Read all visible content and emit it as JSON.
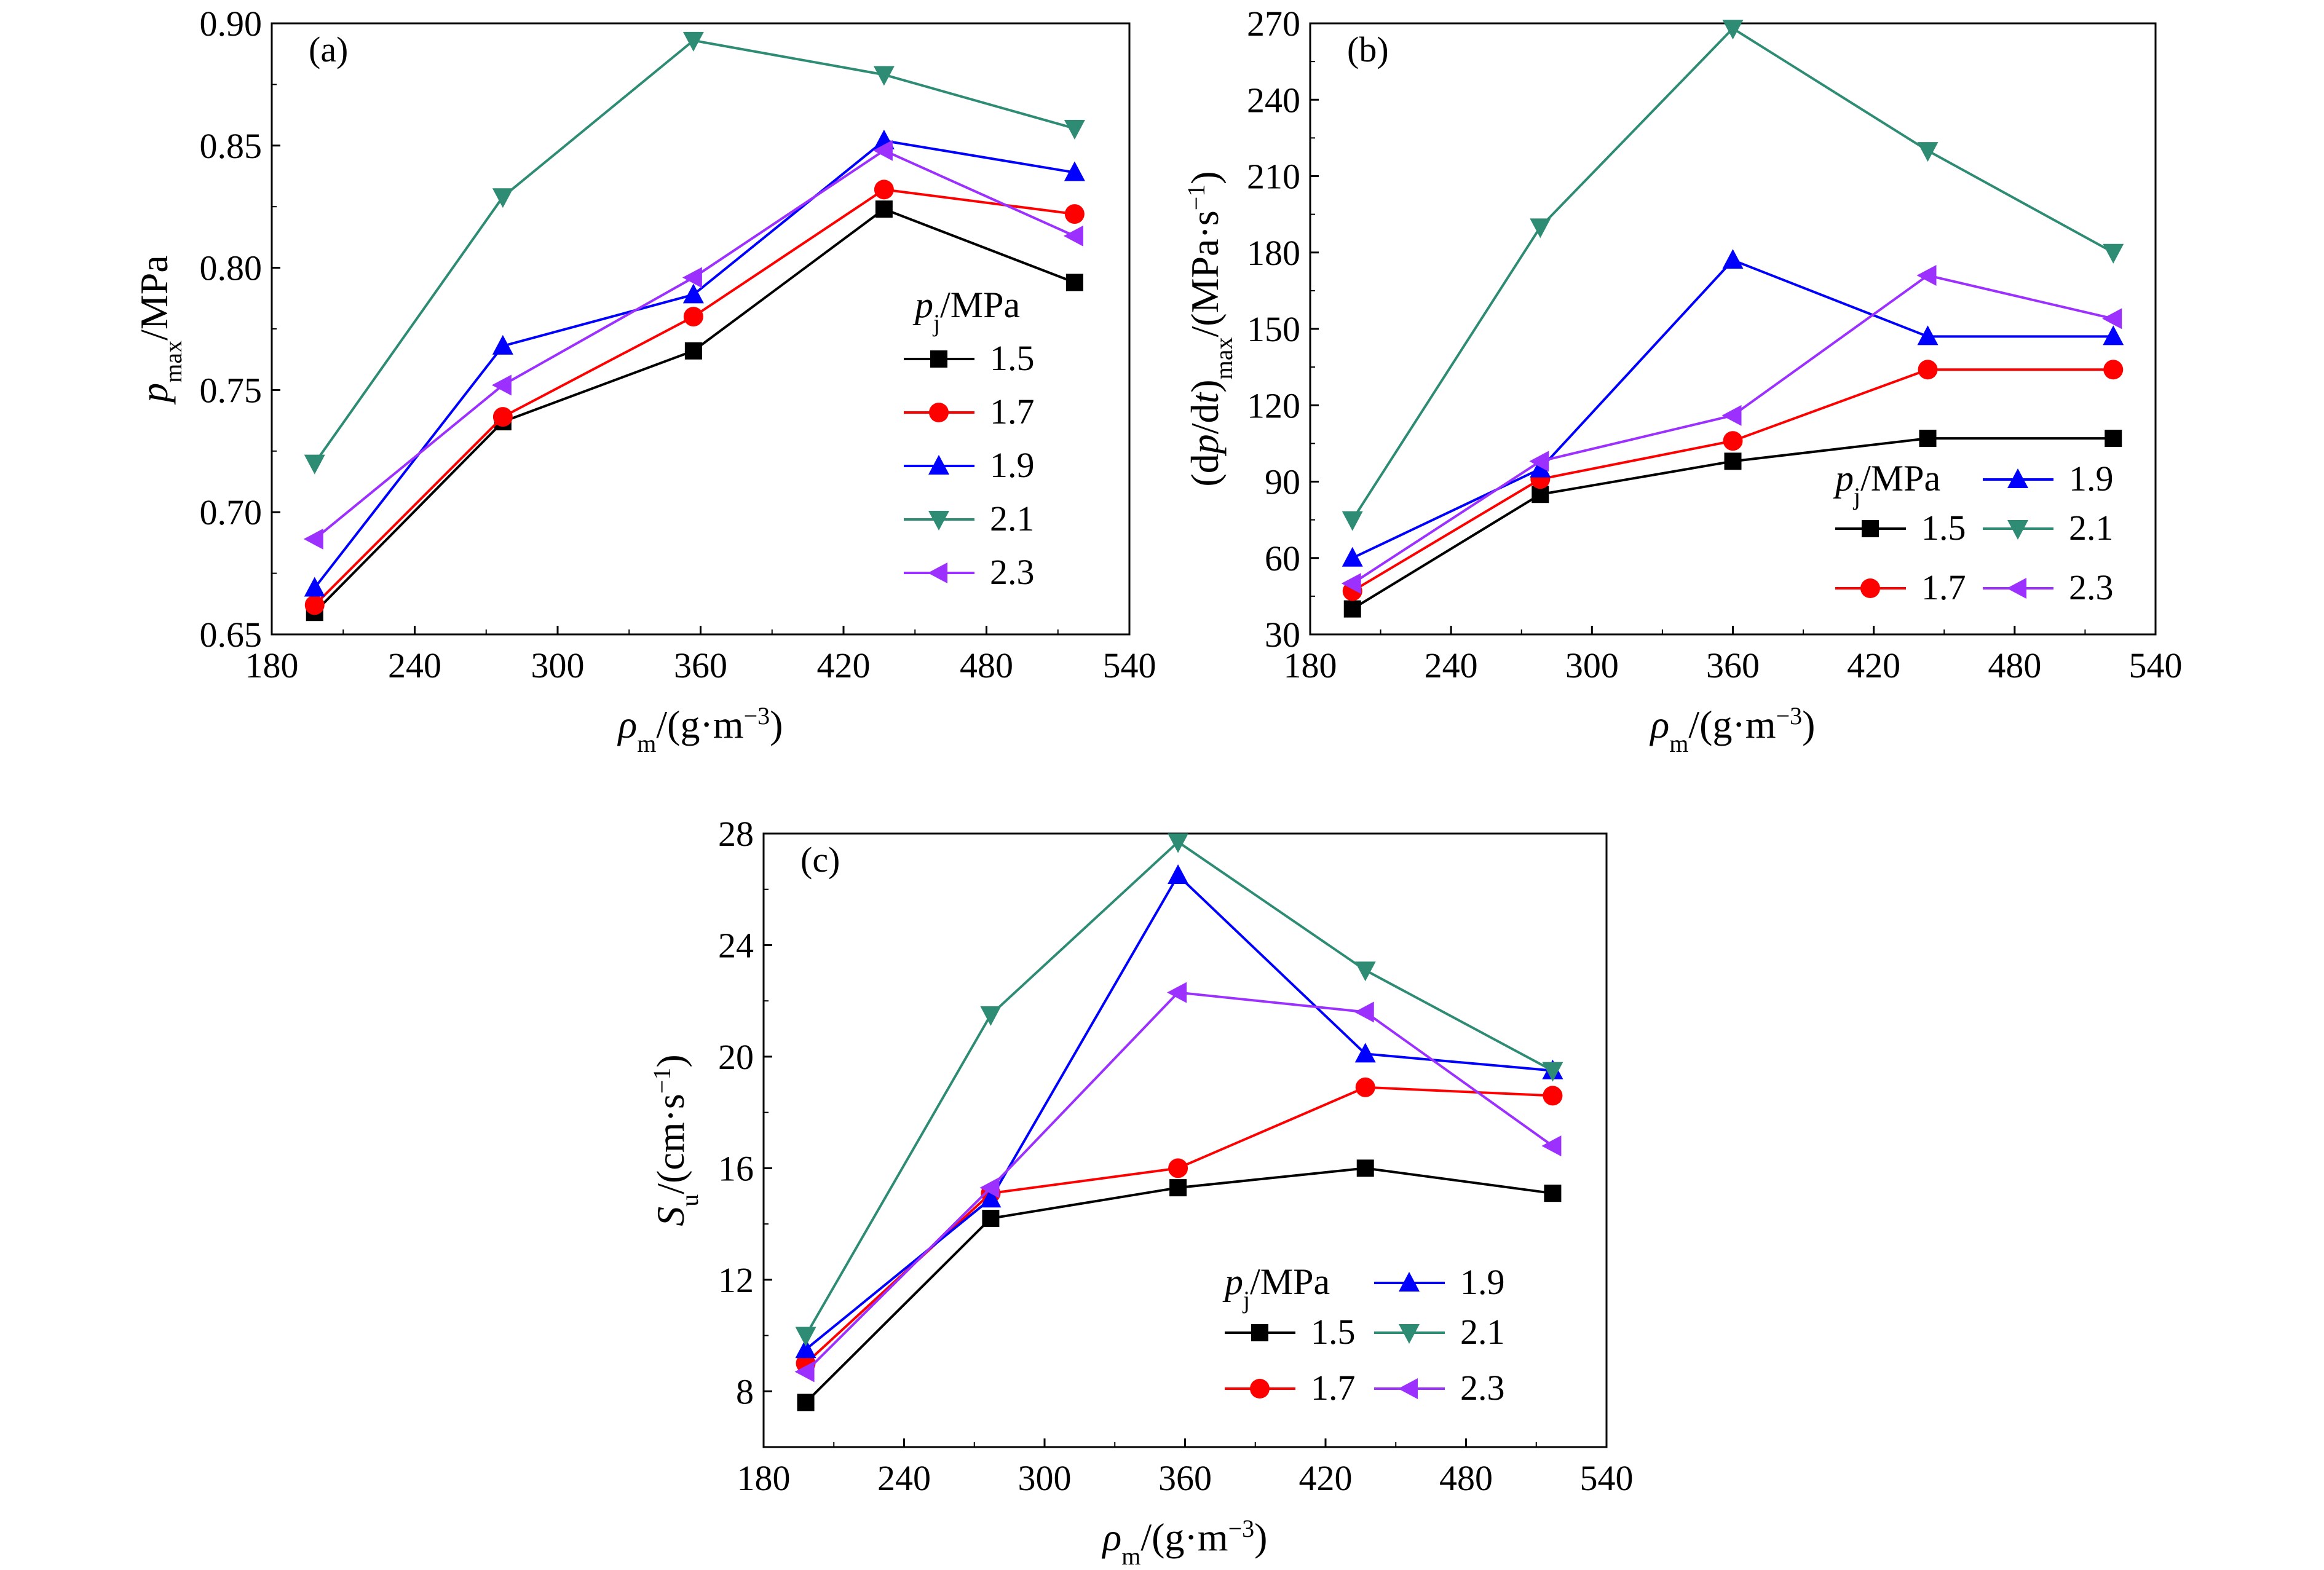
{
  "figure": {
    "charts": [
      "a",
      "b",
      "c"
    ]
  },
  "chart_data": [
    {
      "id": "a",
      "type": "line",
      "panel_label": "(a)",
      "x": [
        198,
        277,
        357,
        437,
        517
      ],
      "xlim": [
        180,
        540
      ],
      "xticks": [
        180,
        240,
        300,
        360,
        420,
        480,
        540
      ],
      "ylim": [
        0.65,
        0.9
      ],
      "yticks": [
        "0.65",
        "0.70",
        "0.75",
        "0.80",
        "0.85",
        "0.90"
      ],
      "xlabel": {
        "base": "ρ",
        "sub": "m",
        "rest": "/(g·m",
        "sup": "−3",
        "end": ")"
      },
      "ylabel": {
        "base": "p",
        "sub": "max",
        "rest": "/MPa"
      },
      "legend": {
        "title": {
          "base": "p",
          "sub": "j",
          "rest": "/MPa"
        },
        "layout": "single-column, center-right",
        "order": [
          0,
          1,
          2,
          3,
          4
        ]
      },
      "series": [
        {
          "name": "1.5",
          "color": "#000000",
          "marker": "square",
          "values": [
            0.659,
            0.737,
            0.766,
            0.824,
            0.794
          ]
        },
        {
          "name": "1.7",
          "color": "#ff0000",
          "marker": "circle",
          "values": [
            0.662,
            0.739,
            0.78,
            0.832,
            0.822
          ]
        },
        {
          "name": "1.9",
          "color": "#0000ff",
          "marker": "triangle-up",
          "values": [
            0.669,
            0.768,
            0.789,
            0.852,
            0.839
          ]
        },
        {
          "name": "2.1",
          "color": "#2e8b74",
          "marker": "triangle-down",
          "values": [
            0.72,
            0.829,
            0.893,
            0.879,
            0.857
          ]
        },
        {
          "name": "2.3",
          "color": "#9b30ff",
          "marker": "triangle-left",
          "values": [
            0.689,
            0.752,
            0.796,
            0.848,
            0.813
          ]
        }
      ]
    },
    {
      "id": "b",
      "type": "line",
      "panel_label": "(b)",
      "x": [
        198,
        278,
        360,
        443,
        522
      ],
      "xlim": [
        180,
        540
      ],
      "xticks": [
        180,
        240,
        300,
        360,
        420,
        480,
        540
      ],
      "ylim": [
        30,
        270
      ],
      "yticks": [
        "30",
        "60",
        "90",
        "120",
        "150",
        "180",
        "210",
        "240",
        "270"
      ],
      "xlabel": {
        "base": "ρ",
        "sub": "m",
        "rest": "/(g·m",
        "sup": "−3",
        "end": ")"
      },
      "ylabel": {
        "pre": "(d",
        "italic": "p",
        "mid": "/d",
        "italic2": "t",
        "post": ")",
        "sub": "max",
        "rest": "/(MPa·s",
        "sup": "−1",
        "end": ")"
      },
      "legend": {
        "title": {
          "base": "p",
          "sub": "j",
          "rest": "/MPa"
        },
        "layout": "two-column, lower-right",
        "order": [
          2,
          0,
          3,
          1,
          4
        ]
      },
      "series": [
        {
          "name": "1.5",
          "color": "#000000",
          "marker": "square",
          "values": [
            40,
            85,
            98,
            107,
            107
          ]
        },
        {
          "name": "1.7",
          "color": "#ff0000",
          "marker": "circle",
          "values": [
            47,
            91,
            106,
            134,
            134
          ]
        },
        {
          "name": "1.9",
          "color": "#0000ff",
          "marker": "triangle-up",
          "values": [
            60,
            95,
            177,
            147,
            147
          ]
        },
        {
          "name": "2.1",
          "color": "#2e8b74",
          "marker": "triangle-down",
          "values": [
            75,
            190,
            268,
            220,
            180
          ]
        },
        {
          "name": "2.3",
          "color": "#9b30ff",
          "marker": "triangle-left",
          "values": [
            50,
            98,
            116,
            171,
            154
          ]
        }
      ]
    },
    {
      "id": "c",
      "type": "line",
      "panel_label": "(c)",
      "x": [
        198,
        277,
        357,
        437,
        517
      ],
      "xlim": [
        180,
        540
      ],
      "xticks": [
        180,
        240,
        300,
        360,
        420,
        480,
        540
      ],
      "ylim": [
        6,
        28
      ],
      "yticks": [
        "8",
        "12",
        "16",
        "20",
        "24",
        "28"
      ],
      "xlabel": {
        "base": "ρ",
        "sub": "m",
        "rest": "/(g·m",
        "sup": "−3",
        "end": ")"
      },
      "ylabel": {
        "base": "S",
        "sub": "u",
        "rest": "/(cm·s",
        "sup": "−1",
        "end": ")"
      },
      "legend": {
        "title": {
          "base": "p",
          "sub": "j",
          "rest": "/MPa"
        },
        "layout": "two-column, lower-right",
        "order": [
          2,
          0,
          3,
          1,
          4
        ]
      },
      "series": [
        {
          "name": "1.5",
          "color": "#000000",
          "marker": "square",
          "values": [
            7.6,
            14.2,
            15.3,
            16.0,
            15.1
          ]
        },
        {
          "name": "1.7",
          "color": "#ff0000",
          "marker": "circle",
          "values": [
            9.0,
            15.1,
            16.0,
            18.9,
            18.6
          ]
        },
        {
          "name": "1.9",
          "color": "#0000ff",
          "marker": "triangle-up",
          "values": [
            9.5,
            14.9,
            26.5,
            20.1,
            19.5
          ]
        },
        {
          "name": "2.1",
          "color": "#2e8b74",
          "marker": "triangle-down",
          "values": [
            10.0,
            21.5,
            27.7,
            23.1,
            19.5
          ]
        },
        {
          "name": "2.3",
          "color": "#9b30ff",
          "marker": "triangle-left",
          "values": [
            8.7,
            15.3,
            22.3,
            21.6,
            16.8
          ]
        }
      ]
    }
  ]
}
